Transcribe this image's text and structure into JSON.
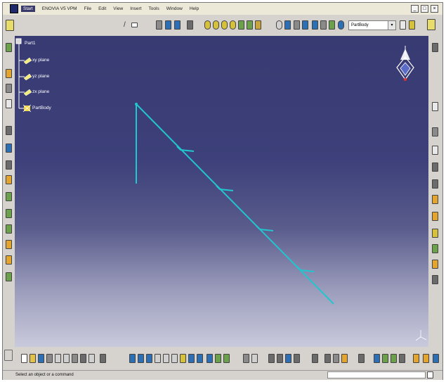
{
  "menubar": {
    "items": [
      "Start",
      "ENOVIA V5 VPM",
      "File",
      "Edit",
      "View",
      "Insert",
      "Tools",
      "Window",
      "Help"
    ]
  },
  "toolbar": {
    "part_selector_value": "PartBody"
  },
  "tree": {
    "root": "Part1",
    "items": [
      "xy plane",
      "yz plane",
      "zx plane",
      "PartBody"
    ]
  },
  "statusbar": {
    "message": "Select an object or a command"
  },
  "colors": {
    "viewport_top": "#383a72",
    "viewport_bottom": "#c9cadc",
    "sketch_line": "#21c6cf"
  }
}
